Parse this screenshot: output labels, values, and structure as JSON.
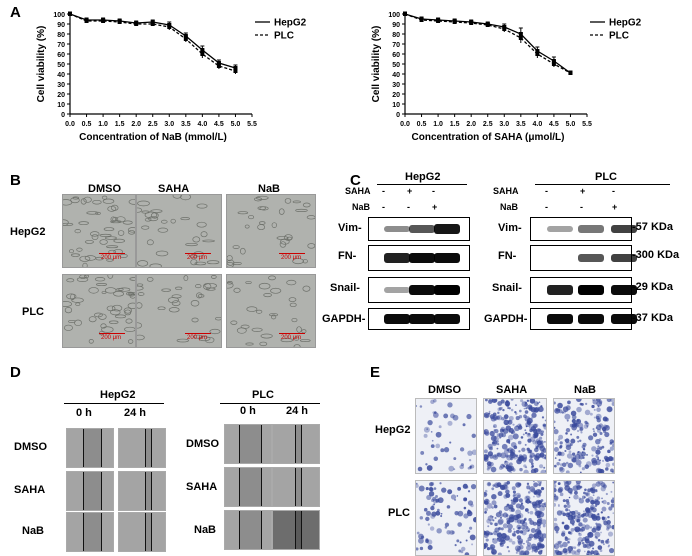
{
  "panels": {
    "A": "A",
    "B": "B",
    "C": "C",
    "D": "D",
    "E": "E"
  },
  "chart_data": [
    {
      "type": "line",
      "xlabel": "Concentration of NaB (mmol/L)",
      "ylabel": "Cell viability (%)",
      "x": [
        0,
        0.5,
        1.0,
        1.5,
        2.0,
        2.5,
        3.0,
        3.5,
        4.0,
        4.5,
        5.0
      ],
      "xticks": [
        "0.0",
        "0.5",
        "1.0",
        "1.5",
        "2.0",
        "2.5",
        "3.0",
        "3.5",
        "4.0",
        "4.5",
        "5.0",
        "5.5"
      ],
      "yticks": [
        "0",
        "10",
        "20",
        "30",
        "40",
        "50",
        "60",
        "70",
        "80",
        "90",
        "100"
      ],
      "xlim": [
        0,
        5.5
      ],
      "ylim": [
        0,
        100
      ],
      "legend_position": "top-right",
      "series": [
        {
          "name": "HepG2",
          "style": "solid",
          "values": [
            100,
            94,
            94,
            93,
            91,
            92,
            89,
            78,
            64,
            51,
            46
          ],
          "err": [
            2,
            2,
            2,
            2,
            2,
            2,
            3,
            3,
            4,
            3,
            3
          ]
        },
        {
          "name": "PLC",
          "style": "dashed",
          "values": [
            100,
            93,
            93,
            92,
            90,
            90,
            87,
            75,
            60,
            48,
            43
          ],
          "err": [
            2,
            2,
            2,
            2,
            2,
            2,
            3,
            3,
            4,
            3,
            3
          ]
        }
      ]
    },
    {
      "type": "line",
      "xlabel": "Concentration of SAHA (μmol/L)",
      "ylabel": "Cell viability (%)",
      "x": [
        0,
        0.5,
        1.0,
        1.5,
        2.0,
        2.5,
        3.0,
        3.5,
        4.0,
        4.5,
        5.0
      ],
      "xticks": [
        "0.0",
        "0.5",
        "1.0",
        "1.5",
        "2.0",
        "2.5",
        "3.0",
        "3.5",
        "4.0",
        "4.5",
        "5.0",
        "5.5"
      ],
      "yticks": [
        "0",
        "10",
        "20",
        "30",
        "40",
        "50",
        "60",
        "70",
        "80",
        "90",
        "100"
      ],
      "xlim": [
        0,
        5.5
      ],
      "ylim": [
        0,
        100
      ],
      "legend_position": "top-right",
      "series": [
        {
          "name": "HepG2",
          "style": "solid",
          "values": [
            100,
            95,
            94,
            93,
            92,
            90,
            87,
            80,
            63,
            53,
            41
          ],
          "err": [
            2,
            2,
            2,
            2,
            2,
            2,
            3,
            6,
            4,
            4,
            2
          ]
        },
        {
          "name": "PLC",
          "style": "dashed",
          "values": [
            100,
            94,
            93,
            92,
            91,
            89,
            85,
            76,
            60,
            50,
            41
          ],
          "err": [
            2,
            2,
            2,
            2,
            2,
            2,
            3,
            5,
            4,
            3,
            2
          ]
        }
      ]
    }
  ],
  "panelB": {
    "cols": [
      "DMSO",
      "SAHA",
      "NaB"
    ],
    "rows": [
      "HepG2",
      "PLC"
    ],
    "scale": "200 μm"
  },
  "panelC": {
    "groups": [
      "HepG2",
      "PLC"
    ],
    "saha_label": "SAHA",
    "nab_label": "NaB",
    "saha_signs": [
      "-",
      "+",
      "-"
    ],
    "nab_signs": [
      "-",
      "-",
      "+"
    ],
    "rows": [
      {
        "name": "Vim-",
        "right_name": "Vim-",
        "size": "-57 KDa",
        "intensity": [
          [
            0.35,
            0.6,
            0.9
          ],
          [
            0.25,
            0.45,
            0.7
          ]
        ]
      },
      {
        "name": "FN-",
        "right_name": "FN-",
        "size": "-300 KDa",
        "intensity": [
          [
            0.85,
            0.95,
            0.95
          ],
          [
            0.0,
            0.6,
            0.7
          ]
        ]
      },
      {
        "name": "Snail-",
        "right_name": "Snail-",
        "size": "-29 KDa",
        "intensity": [
          [
            0.25,
            0.95,
            1.0
          ],
          [
            0.85,
            1.0,
            0.95
          ]
        ]
      },
      {
        "name": "GAPDH-",
        "right_name": "GAPDH-",
        "size": "-37 KDa",
        "intensity": [
          [
            0.95,
            0.95,
            0.95
          ],
          [
            0.95,
            0.95,
            0.95
          ]
        ]
      }
    ]
  },
  "panelD": {
    "groups": [
      "HepG2",
      "PLC"
    ],
    "times": [
      "0 h",
      "24 h"
    ],
    "rows": [
      "DMSO",
      "SAHA",
      "NaB"
    ]
  },
  "panelE": {
    "cols": [
      "DMSO",
      "SAHA",
      "NaB"
    ],
    "rows": [
      "HepG2",
      "PLC"
    ],
    "density": [
      [
        0.1,
        0.9,
        0.6
      ],
      [
        0.25,
        0.9,
        0.8
      ]
    ]
  },
  "colors": {
    "stain": "#3a4a9c",
    "micro": "#b0b2ae",
    "scale": "#cc0000"
  }
}
